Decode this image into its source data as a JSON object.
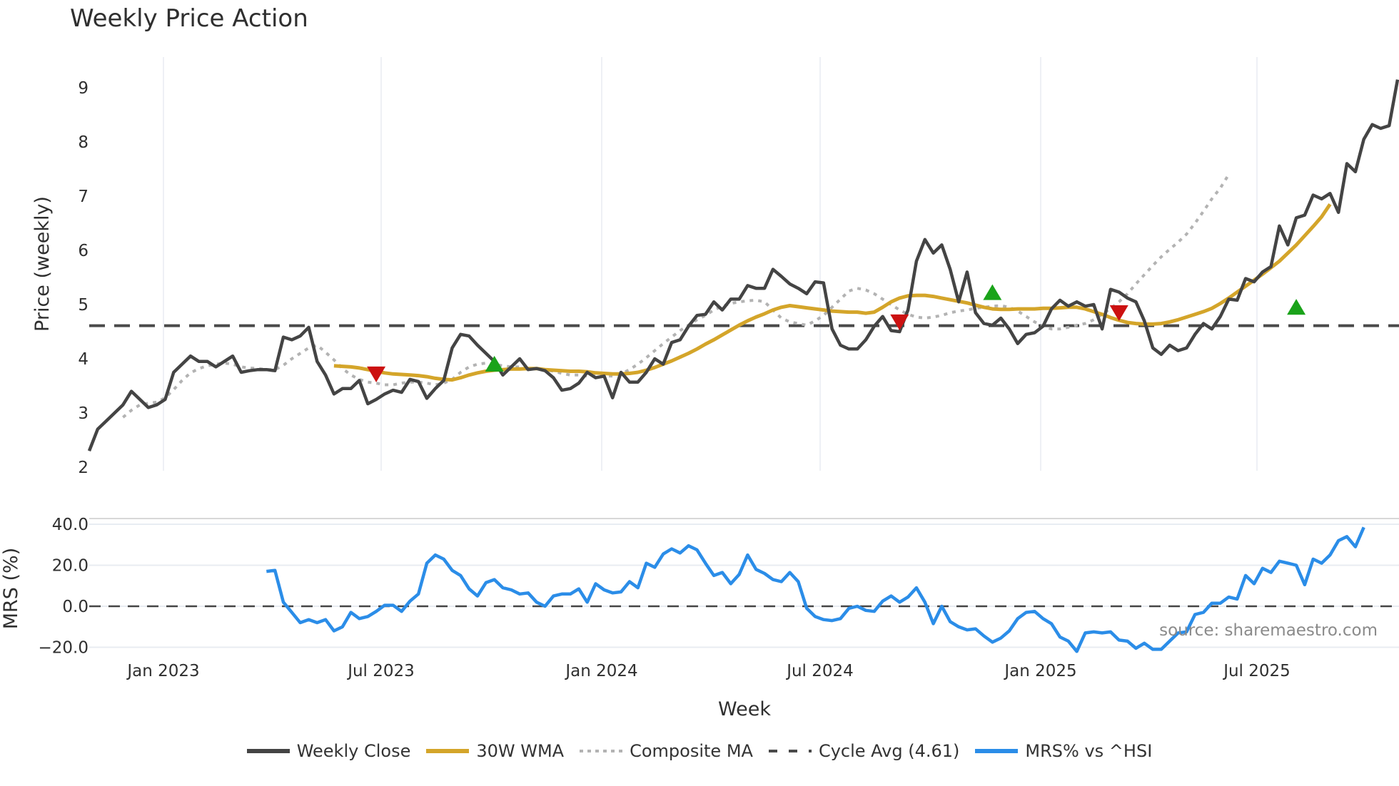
{
  "title": "Weekly Price Action",
  "source_text": "source: sharemaestro.com",
  "colors": {
    "weekly_close": "#444444",
    "wma30": "#d4a52a",
    "composite_ma": "#b3b3b3",
    "cycle_avg": "#4a4a4a",
    "mrs": "#2b8de8",
    "buy_marker": "#1aa31a",
    "sell_marker": "#cc1111",
    "grid": "#e8ecf2"
  },
  "legend": [
    {
      "label": "Weekly Close",
      "style": "solid",
      "color": "#444444"
    },
    {
      "label": "30W WMA",
      "style": "solid",
      "color": "#d4a52a"
    },
    {
      "label": "Composite MA",
      "style": "dotted",
      "color": "#b3b3b3"
    },
    {
      "label": "Cycle Avg (4.61)",
      "style": "dashed",
      "color": "#4a4a4a"
    },
    {
      "label": "MRS% vs ^HSI",
      "style": "solid",
      "color": "#2b8de8"
    }
  ],
  "chart_data": [
    {
      "type": "line",
      "title": "Weekly Price Action",
      "xlabel": "Week",
      "ylabel": "Price (weekly)",
      "ylim": [
        2,
        9.5
      ],
      "yticks": [
        2,
        3,
        4,
        5,
        6,
        7,
        8,
        9
      ],
      "xticks": [
        "Jan 2023",
        "Jul 2023",
        "Jan 2024",
        "Jul 2024",
        "Jan 2025",
        "Jul 2025"
      ],
      "grid": true,
      "x_start": "2022-11 (weekly)",
      "series": [
        {
          "name": "Weekly Close",
          "values": [
            2.3,
            2.7,
            2.85,
            3.0,
            3.15,
            3.4,
            3.25,
            3.1,
            3.15,
            3.25,
            3.75,
            3.9,
            4.05,
            3.95,
            3.95,
            3.85,
            3.95,
            4.05,
            3.75,
            3.78,
            3.8,
            3.8,
            3.78,
            4.4,
            4.35,
            4.42,
            4.58,
            3.95,
            3.7,
            3.35,
            3.45,
            3.45,
            3.6,
            3.17,
            3.25,
            3.35,
            3.42,
            3.38,
            3.62,
            3.58,
            3.27,
            3.45,
            3.6,
            4.2,
            4.45,
            4.42,
            4.25,
            4.1,
            3.95,
            3.7,
            3.85,
            4.0,
            3.8,
            3.82,
            3.78,
            3.65,
            3.42,
            3.45,
            3.55,
            3.75,
            3.65,
            3.68,
            3.28,
            3.75,
            3.57,
            3.57,
            3.75,
            4.0,
            3.9,
            4.3,
            4.35,
            4.6,
            4.8,
            4.82,
            5.05,
            4.9,
            5.1,
            5.1,
            5.35,
            5.3,
            5.3,
            5.65,
            5.52,
            5.38,
            5.3,
            5.2,
            5.42,
            5.4,
            4.55,
            4.25,
            4.18,
            4.18,
            4.35,
            4.6,
            4.78,
            4.52,
            4.5,
            4.9,
            5.8,
            6.2,
            5.95,
            6.1,
            5.65,
            5.05,
            5.6,
            4.85,
            4.65,
            4.62,
            4.75,
            4.55,
            4.28,
            4.45,
            4.48,
            4.6,
            4.92,
            5.08,
            4.97,
            5.05,
            4.97,
            5.0,
            4.55,
            5.28,
            5.23,
            5.12,
            5.05,
            4.7,
            4.2,
            4.08,
            4.25,
            4.15,
            4.2,
            4.45,
            4.65,
            4.55,
            4.78,
            5.1,
            5.08,
            5.48,
            5.42,
            5.6,
            5.7,
            6.45,
            6.1,
            6.6,
            6.65,
            7.02,
            6.95,
            7.05,
            6.7,
            7.6,
            7.45,
            8.05,
            8.32,
            8.25,
            8.3,
            9.15
          ]
        },
        {
          "name": "30W WMA",
          "start_index": 29,
          "values": [
            3.87,
            3.86,
            3.85,
            3.83,
            3.8,
            3.77,
            3.74,
            3.72,
            3.71,
            3.7,
            3.69,
            3.67,
            3.64,
            3.62,
            3.61,
            3.65,
            3.7,
            3.74,
            3.77,
            3.79,
            3.8,
            3.81,
            3.81,
            3.82,
            3.82,
            3.8,
            3.79,
            3.78,
            3.77,
            3.77,
            3.76,
            3.74,
            3.73,
            3.72,
            3.72,
            3.73,
            3.75,
            3.79,
            3.84,
            3.9,
            3.96,
            4.03,
            4.1,
            4.18,
            4.27,
            4.35,
            4.44,
            4.53,
            4.62,
            4.7,
            4.77,
            4.83,
            4.9,
            4.95,
            4.98,
            4.96,
            4.94,
            4.92,
            4.9,
            4.88,
            4.87,
            4.86,
            4.86,
            4.84,
            4.86,
            4.95,
            5.05,
            5.12,
            5.16,
            5.17,
            5.17,
            5.15,
            5.12,
            5.09,
            5.06,
            5.03,
            4.99,
            4.95,
            4.92,
            4.91,
            4.91,
            4.92,
            4.92,
            4.92,
            4.93,
            4.93,
            4.94,
            4.95,
            4.95,
            4.92,
            4.87,
            4.82,
            4.76,
            4.71,
            4.67,
            4.65,
            4.64,
            4.64,
            4.65,
            4.68,
            4.72,
            4.77,
            4.82,
            4.87,
            4.93,
            5.02,
            5.12,
            5.23,
            5.34,
            5.45,
            5.56,
            5.68,
            5.8,
            5.95,
            6.1,
            6.27,
            6.44,
            6.62,
            6.85
          ]
        },
        {
          "name": "Composite MA",
          "start_index": 4,
          "values": [
            2.92,
            3.05,
            3.15,
            3.18,
            3.2,
            3.28,
            3.43,
            3.6,
            3.74,
            3.82,
            3.87,
            3.9,
            3.92,
            3.9,
            3.85,
            3.83,
            3.82,
            3.8,
            3.8,
            3.88,
            4.0,
            4.1,
            4.2,
            4.25,
            4.12,
            3.98,
            3.82,
            3.7,
            3.62,
            3.57,
            3.55,
            3.52,
            3.52,
            3.55,
            3.57,
            3.57,
            3.55,
            3.52,
            3.55,
            3.62,
            3.75,
            3.85,
            3.9,
            3.92,
            3.9,
            3.87,
            3.85,
            3.85,
            3.83,
            3.82,
            3.8,
            3.77,
            3.73,
            3.7,
            3.7,
            3.68,
            3.68,
            3.68,
            3.68,
            3.72,
            3.8,
            3.9,
            4.02,
            4.15,
            4.28,
            4.4,
            4.52,
            4.62,
            4.72,
            4.8,
            4.9,
            4.97,
            5.02,
            5.05,
            5.07,
            5.08,
            5.05,
            4.9,
            4.75,
            4.68,
            4.65,
            4.62,
            4.7,
            4.8,
            4.95,
            5.1,
            5.25,
            5.3,
            5.27,
            5.2,
            5.1,
            5.0,
            4.9,
            4.82,
            4.77,
            4.75,
            4.77,
            4.8,
            4.85,
            4.88,
            4.9,
            4.93,
            4.95,
            4.97,
            4.98,
            4.95,
            4.88,
            4.78,
            4.68,
            4.6,
            4.55,
            4.55,
            4.58,
            4.62,
            4.65,
            4.72,
            4.82,
            4.93,
            5.05,
            5.2,
            5.38,
            5.55,
            5.72,
            5.88,
            6.02,
            6.15,
            6.3,
            6.5,
            6.72,
            6.95,
            7.15,
            7.4
          ]
        },
        {
          "name": "Cycle Avg (4.61)",
          "constant": 4.61,
          "style": "dashed"
        }
      ],
      "markers": [
        {
          "type": "sell",
          "shape": "triangle-down",
          "index": 34,
          "value": 3.72
        },
        {
          "type": "buy",
          "shape": "triangle-up",
          "index": 48,
          "value": 3.9
        },
        {
          "type": "sell",
          "shape": "triangle-down",
          "index": 96,
          "value": 4.68
        },
        {
          "type": "buy",
          "shape": "triangle-up",
          "index": 107,
          "value": 5.22
        },
        {
          "type": "sell",
          "shape": "triangle-down",
          "index": 122,
          "value": 4.85
        },
        {
          "type": "buy",
          "shape": "triangle-up",
          "index": 143,
          "value": 4.95
        }
      ]
    },
    {
      "type": "line",
      "ylabel": "MRS (%)",
      "ylim": [
        -22,
        42
      ],
      "yticks": [
        "40.0",
        "20.0",
        "0.0",
        "−20.0"
      ],
      "yvalues": [
        40,
        20,
        0,
        -20
      ],
      "zero_line": "dashed",
      "series": [
        {
          "name": "MRS% vs ^HSI",
          "start_index": 21,
          "values": [
            17,
            17.5,
            2,
            -3,
            -8,
            -6.5,
            -8,
            -6.5,
            -12,
            -10,
            -3,
            -6,
            -5,
            -2.5,
            0.5,
            0.5,
            -2.5,
            2.5,
            6,
            21,
            25,
            23,
            17.5,
            15,
            8.5,
            5,
            11.5,
            13,
            9,
            8,
            6,
            6.5,
            2,
            0,
            5,
            6,
            6,
            8.5,
            2,
            11,
            8,
            6.5,
            7,
            12,
            9,
            21,
            19,
            25.5,
            28,
            26,
            29.5,
            27.5,
            21,
            15,
            16.5,
            11,
            15.5,
            25,
            18,
            16,
            13,
            12,
            16.5,
            12,
            -1,
            -5,
            -6.5,
            -7,
            -6,
            -1,
            0,
            -2,
            -2.5,
            2.5,
            5,
            2,
            4.5,
            9,
            2,
            -8.5,
            0,
            -7.5,
            -10,
            -11.5,
            -11,
            -14.5,
            -17.5,
            -15.5,
            -12,
            -6,
            -3,
            -2.5,
            -6,
            -8.5,
            -15,
            -17,
            -22,
            -13,
            -12.5,
            -13,
            -12.5,
            -16.5,
            -17,
            -20.5,
            -18,
            -21,
            -21,
            -17,
            -13,
            -12.5,
            -4,
            -3,
            1.5,
            1.5,
            4.5,
            3.5,
            15,
            11,
            18.5,
            16.5,
            22,
            21,
            20,
            10.5,
            23,
            21,
            25,
            32,
            34,
            29,
            38.5
          ]
        }
      ]
    }
  ],
  "axes": {
    "price_ylabel": "Price (weekly)",
    "mrs_ylabel": "MRS (%)",
    "xlabel": "Week",
    "price_yticks": [
      "2",
      "3",
      "4",
      "5",
      "6",
      "7",
      "8",
      "9"
    ],
    "mrs_yticks": [
      "40.0",
      "20.0",
      "0.0",
      "−20.0"
    ],
    "xticks": [
      "Jan 2023",
      "Jul 2023",
      "Jan 2024",
      "Jul 2024",
      "Jan 2025",
      "Jul 2025"
    ]
  }
}
